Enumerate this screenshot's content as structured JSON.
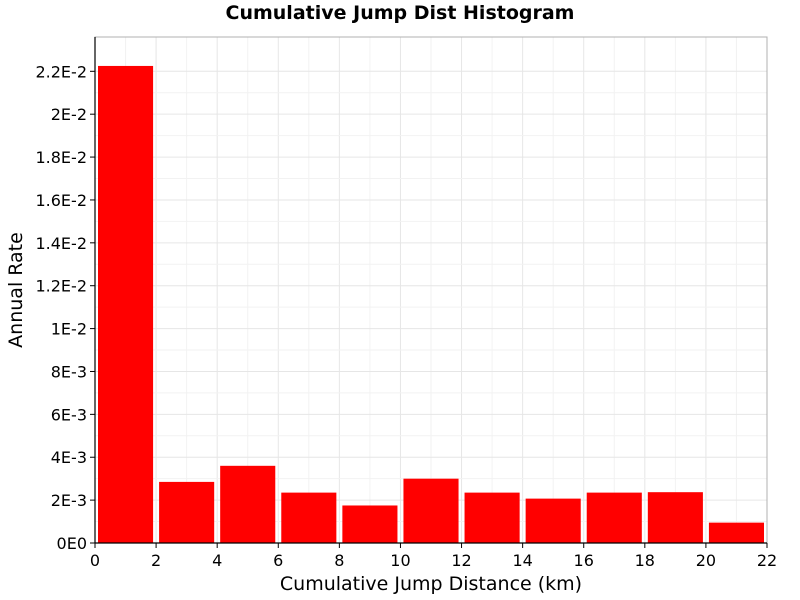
{
  "chart_data": {
    "type": "bar",
    "title": "Cumulative Jump Dist Histogram",
    "xlabel": "Cumulative Jump Distance (km)",
    "ylabel": "Annual Rate",
    "xlim": [
      0,
      22
    ],
    "ylim": [
      0,
      0.0236
    ],
    "x_ticks": [
      0,
      2,
      4,
      6,
      8,
      10,
      12,
      14,
      16,
      18,
      20,
      22
    ],
    "x_tick_labels": [
      "0",
      "2",
      "4",
      "6",
      "8",
      "10",
      "12",
      "14",
      "16",
      "18",
      "20",
      "22"
    ],
    "y_ticks": [
      0,
      0.002,
      0.004,
      0.006,
      0.008,
      0.01,
      0.012,
      0.014,
      0.016,
      0.018,
      0.02,
      0.022
    ],
    "y_tick_labels": [
      "0E0",
      "2E-3",
      "4E-3",
      "6E-3",
      "8E-3",
      "1E-2",
      "1.2E-2",
      "1.4E-2",
      "1.6E-2",
      "1.8E-2",
      "2E-2",
      "2.2E-2"
    ],
    "grid": true,
    "bin_width": 2,
    "bins": [
      {
        "x": 1,
        "value": 0.02225
      },
      {
        "x": 3,
        "value": 0.00285
      },
      {
        "x": 5,
        "value": 0.0036
      },
      {
        "x": 7,
        "value": 0.00235
      },
      {
        "x": 9,
        "value": 0.00175
      },
      {
        "x": 11,
        "value": 0.003
      },
      {
        "x": 13,
        "value": 0.00235
      },
      {
        "x": 15,
        "value": 0.00207
      },
      {
        "x": 17,
        "value": 0.00235
      },
      {
        "x": 19,
        "value": 0.00237
      },
      {
        "x": 21,
        "value": 0.00095
      }
    ],
    "bar_color": "#ff0000"
  }
}
